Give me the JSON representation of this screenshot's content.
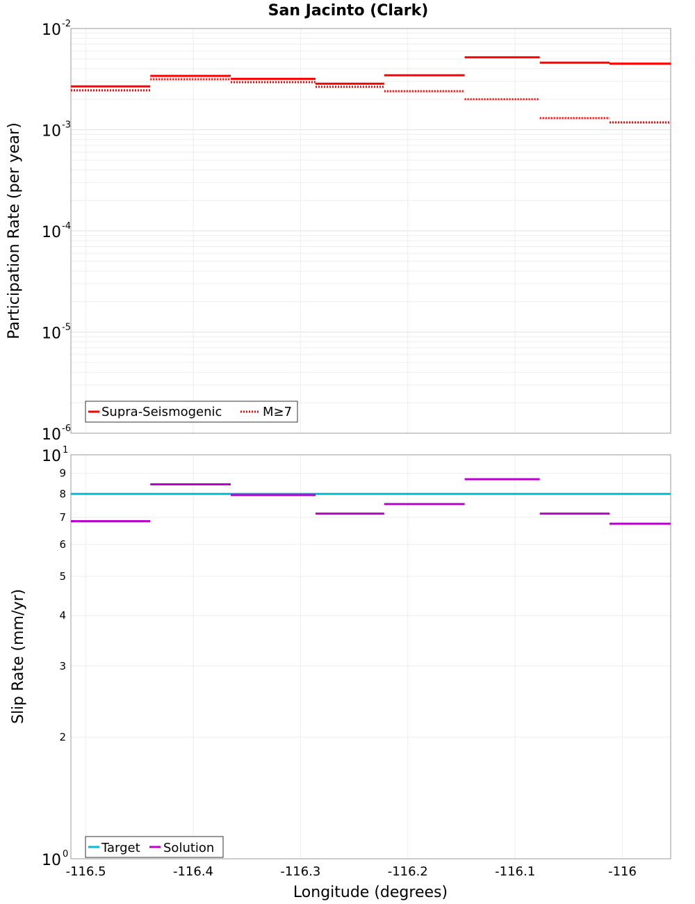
{
  "chart_data": [
    {
      "type": "line",
      "title": "San Jacinto (Clark)",
      "xlabel": "",
      "ylabel": "Participation Rate (per year)",
      "yscale": "log",
      "ylim": [
        1e-06,
        0.01
      ],
      "xlim": [
        -116.514,
        -115.955
      ],
      "yticks": [
        {
          "base": "10",
          "exp": "-6"
        },
        {
          "base": "10",
          "exp": "-5"
        },
        {
          "base": "10",
          "exp": "-4"
        },
        {
          "base": "10",
          "exp": "-3"
        },
        {
          "base": "10",
          "exp": "-2"
        }
      ],
      "ytick_values": [
        1e-06,
        1e-05,
        0.0001,
        0.001,
        0.01
      ],
      "legend_position": "bottom-left",
      "grid": true,
      "series": [
        {
          "name": "Supra-Seismogenic",
          "style": "solid",
          "color": "#ff0000",
          "segments": [
            {
              "x0": -116.514,
              "x1": -116.44,
              "y": 0.00268
            },
            {
              "x0": -116.44,
              "x1": -116.365,
              "y": 0.0034
            },
            {
              "x0": -116.365,
              "x1": -116.286,
              "y": 0.00318
            },
            {
              "x0": -116.286,
              "x1": -116.222,
              "y": 0.00285
            },
            {
              "x0": -116.222,
              "x1": -116.147,
              "y": 0.00345
            },
            {
              "x0": -116.147,
              "x1": -116.077,
              "y": 0.0052
            },
            {
              "x0": -116.077,
              "x1": -116.012,
              "y": 0.0046
            },
            {
              "x0": -116.012,
              "x1": -115.955,
              "y": 0.0045
            }
          ]
        },
        {
          "name": "M≥7",
          "style": "dotted",
          "color": "#ff0000",
          "segments": [
            {
              "x0": -116.514,
              "x1": -116.44,
              "y": 0.00245
            },
            {
              "x0": -116.44,
              "x1": -116.365,
              "y": 0.00315
            },
            {
              "x0": -116.365,
              "x1": -116.286,
              "y": 0.00295
            },
            {
              "x0": -116.286,
              "x1": -116.222,
              "y": 0.00265
            },
            {
              "x0": -116.222,
              "x1": -116.147,
              "y": 0.0024
            },
            {
              "x0": -116.147,
              "x1": -116.077,
              "y": 0.002
            },
            {
              "x0": -116.077,
              "x1": -116.012,
              "y": 0.0013
            },
            {
              "x0": -116.012,
              "x1": -115.955,
              "y": 0.00118
            }
          ]
        }
      ]
    },
    {
      "type": "line",
      "title": "",
      "xlabel": "Longitude (degrees)",
      "ylabel": "Slip Rate (mm/yr)",
      "yscale": "log",
      "ylim": [
        1,
        10
      ],
      "xlim": [
        -116.514,
        -115.955
      ],
      "xticks": [
        -116.5,
        -116.4,
        -116.3,
        -116.2,
        -116.1,
        -116
      ],
      "xtick_labels": [
        "-116.5",
        "-116.4",
        "-116.3",
        "-116.2",
        "-116.1",
        "-116"
      ],
      "yticks_major": [
        {
          "base": "10",
          "exp": "0"
        },
        {
          "base": "10",
          "exp": "1"
        }
      ],
      "ytick_major_values": [
        1,
        10
      ],
      "yticks_minor": [
        2,
        3,
        4,
        5,
        6,
        7,
        8,
        9
      ],
      "yticks_minor_labels": [
        "2",
        "3",
        "4",
        "5",
        "6",
        "7",
        "8",
        "9"
      ],
      "legend_position": "bottom-left",
      "grid": true,
      "series": [
        {
          "name": "Target",
          "style": "solid",
          "color": "#00bcd4",
          "segments": [
            {
              "x0": -116.514,
              "x1": -115.955,
              "y": 8.0
            }
          ]
        },
        {
          "name": "Solution",
          "style": "solid",
          "color": "#bb00cc",
          "segments": [
            {
              "x0": -116.514,
              "x1": -116.44,
              "y": 6.85
            },
            {
              "x0": -116.44,
              "x1": -116.365,
              "y": 8.45
            },
            {
              "x0": -116.365,
              "x1": -116.286,
              "y": 7.95
            },
            {
              "x0": -116.286,
              "x1": -116.222,
              "y": 7.15
            },
            {
              "x0": -116.222,
              "x1": -116.147,
              "y": 7.55
            },
            {
              "x0": -116.147,
              "x1": -116.077,
              "y": 8.7
            },
            {
              "x0": -116.077,
              "x1": -116.012,
              "y": 7.15
            },
            {
              "x0": -116.012,
              "x1": -115.955,
              "y": 6.75
            }
          ]
        }
      ]
    }
  ]
}
